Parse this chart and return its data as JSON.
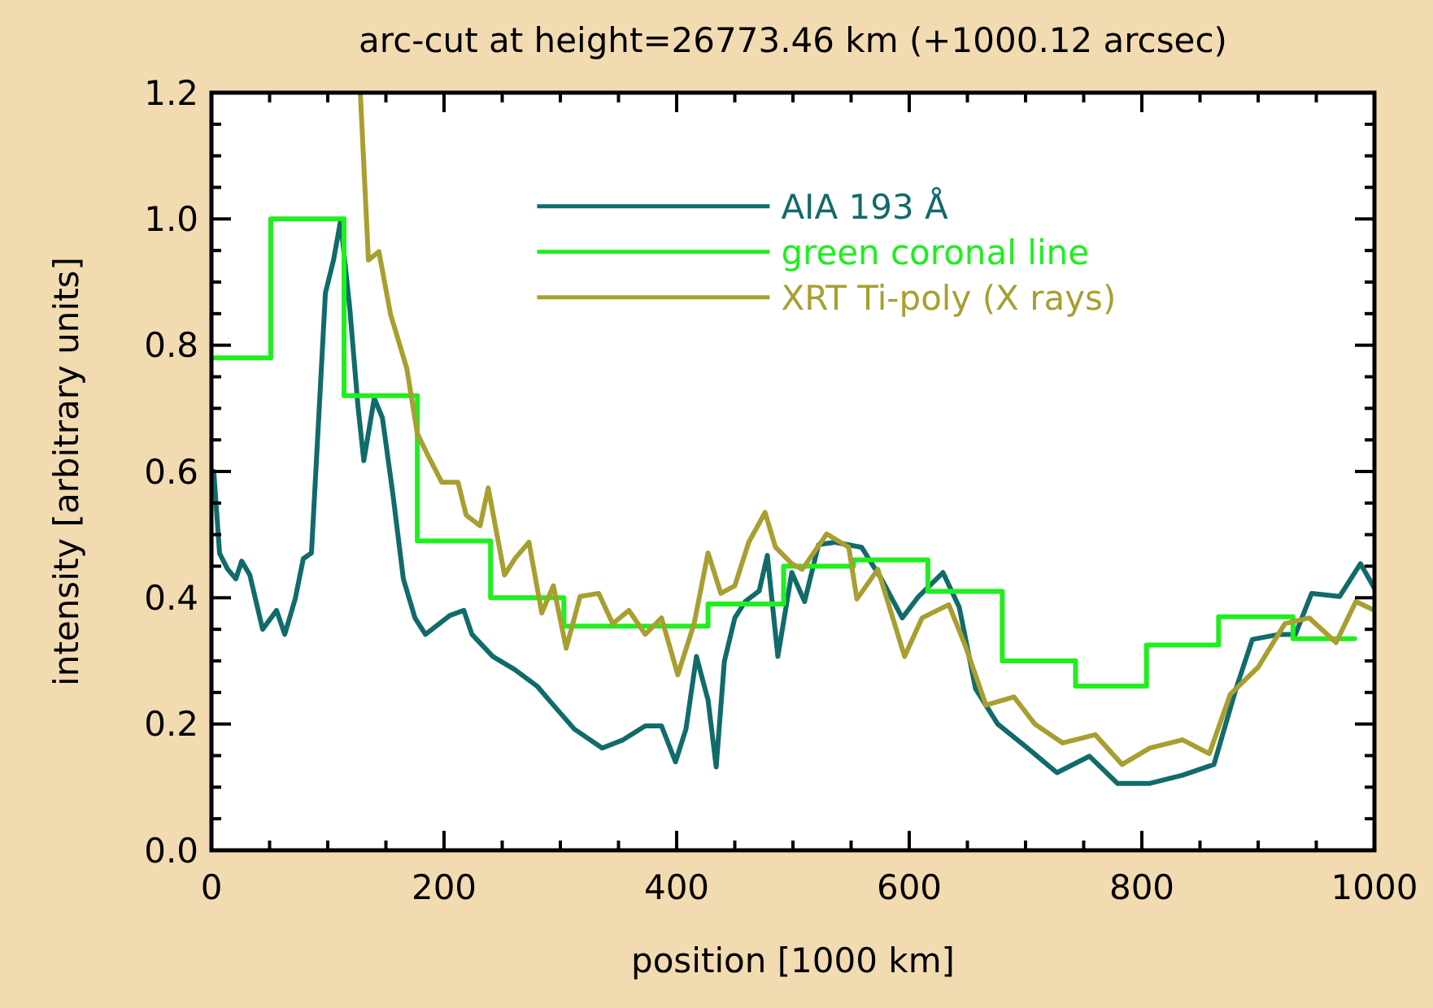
{
  "chart_data": {
    "type": "line",
    "title": "arc-cut at height=26773.46 km (+1000.12  arcsec)",
    "xlabel": "position [1000 km]",
    "ylabel": "intensity [arbitrary units]",
    "xlim": [
      0,
      1000
    ],
    "ylim": [
      0,
      1.2
    ],
    "xticks": [
      0,
      {
        "value": 50,
        "label": null
      },
      {
        "value": 100,
        "label": null
      },
      {
        "value": 150,
        "label": null
      },
      200,
      {
        "value": 250,
        "label": null
      },
      {
        "value": 300,
        "label": null
      },
      {
        "value": 350,
        "label": null
      },
      400,
      {
        "value": 450,
        "label": null
      },
      {
        "value": 500,
        "label": null
      },
      {
        "value": 550,
        "label": null
      },
      600,
      {
        "value": 650,
        "label": null
      },
      {
        "value": 700,
        "label": null
      },
      {
        "value": 750,
        "label": null
      },
      800,
      {
        "value": 850,
        "label": null
      },
      {
        "value": 900,
        "label": null
      },
      {
        "value": 950,
        "label": null
      },
      1000
    ],
    "yticks": [
      {
        "value": 0,
        "label": "0.0"
      },
      {
        "value": 0.05,
        "label": null
      },
      {
        "value": 0.1,
        "label": null
      },
      {
        "value": 0.15,
        "label": null
      },
      {
        "value": 0.2,
        "label": "0.2"
      },
      {
        "value": 0.25,
        "label": null
      },
      {
        "value": 0.3,
        "label": null
      },
      {
        "value": 0.35,
        "label": null
      },
      {
        "value": 0.4,
        "label": "0.4"
      },
      {
        "value": 0.45,
        "label": null
      },
      {
        "value": 0.5,
        "label": null
      },
      {
        "value": 0.55,
        "label": null
      },
      {
        "value": 0.6,
        "label": "0.6"
      },
      {
        "value": 0.65,
        "label": null
      },
      {
        "value": 0.7,
        "label": null
      },
      {
        "value": 0.75,
        "label": null
      },
      {
        "value": 0.8,
        "label": "0.8"
      },
      {
        "value": 0.85,
        "label": null
      },
      {
        "value": 0.9,
        "label": null
      },
      {
        "value": 0.95,
        "label": null
      },
      {
        "value": 1.0,
        "label": "1.0"
      },
      {
        "value": 1.05,
        "label": null
      },
      {
        "value": 1.1,
        "label": null
      },
      {
        "value": 1.15,
        "label": null
      },
      {
        "value": 1.2,
        "label": "1.2"
      }
    ],
    "legend": "top",
    "line_style": "solid",
    "series": [
      {
        "name": "AIA 193 Å",
        "color": "#116b6b",
        "x": [
          2,
          7,
          14,
          21,
          26,
          33,
          44,
          56,
          63,
          72,
          79,
          86,
          98,
          105,
          111,
          119,
          126,
          131,
          140,
          147,
          156,
          165,
          175,
          184,
          196,
          205,
          217,
          224,
          242,
          261,
          280,
          294,
          312,
          336,
          354,
          373,
          387,
          399,
          408,
          417,
          427,
          434,
          441,
          450,
          459,
          471,
          478,
          487,
          499,
          510,
          522,
          536,
          559,
          576,
          594,
          608,
          629,
          643,
          657,
          676,
          699,
          727,
          755,
          779,
          807,
          835,
          862,
          881,
          895,
          918,
          932,
          946,
          970,
          988,
          1000
        ],
        "values": [
          0.6,
          0.47,
          0.445,
          0.43,
          0.458,
          0.436,
          0.35,
          0.38,
          0.342,
          0.398,
          0.462,
          0.471,
          0.883,
          0.935,
          0.997,
          0.857,
          0.703,
          0.617,
          0.716,
          0.685,
          0.564,
          0.43,
          0.368,
          0.342,
          0.359,
          0.372,
          0.38,
          0.342,
          0.307,
          0.286,
          0.26,
          0.23,
          0.192,
          0.162,
          0.175,
          0.197,
          0.197,
          0.14,
          0.192,
          0.307,
          0.238,
          0.132,
          0.299,
          0.368,
          0.394,
          0.411,
          0.467,
          0.307,
          0.44,
          0.394,
          0.484,
          0.488,
          0.48,
          0.43,
          0.368,
          0.402,
          0.44,
          0.385,
          0.256,
          0.2,
          0.166,
          0.123,
          0.149,
          0.106,
          0.106,
          0.119,
          0.136,
          0.256,
          0.334,
          0.342,
          0.342,
          0.407,
          0.402,
          0.454,
          0.415
        ]
      },
      {
        "name": "green coronal line",
        "type": "step",
        "color": "#1fee1f",
        "x": [
          0,
          51,
          114,
          177,
          240,
          303,
          427,
          492,
          552,
          616,
          680,
          743,
          804,
          866,
          930,
          983
        ],
        "values": [
          0.78,
          1.0,
          0.72,
          0.49,
          0.4,
          0.355,
          0.39,
          0.45,
          0.46,
          0.41,
          0.3,
          0.26,
          0.325,
          0.37,
          0.335,
          0.335
        ]
      },
      {
        "name": "XRT Ti-poly (X rays)",
        "color": "#a89f30",
        "x": [
          128,
          135,
          144,
          154,
          168,
          177,
          186,
          198,
          212,
          219,
          231,
          238,
          252,
          261,
          273,
          284,
          294,
          305,
          317,
          333,
          345,
          359,
          373,
          387,
          401,
          415,
          427,
          438,
          450,
          462,
          476,
          485,
          499,
          508,
          529,
          548,
          555,
          573,
          596,
          611,
          634,
          648,
          666,
          690,
          708,
          732,
          760,
          783,
          807,
          835,
          858,
          876,
          900,
          923,
          944,
          967,
          984,
          1000
        ],
        "values": [
          1.2,
          0.935,
          0.948,
          0.849,
          0.763,
          0.66,
          0.626,
          0.583,
          0.583,
          0.531,
          0.514,
          0.574,
          0.436,
          0.462,
          0.488,
          0.376,
          0.419,
          0.32,
          0.402,
          0.407,
          0.359,
          0.38,
          0.342,
          0.368,
          0.278,
          0.359,
          0.471,
          0.407,
          0.419,
          0.488,
          0.535,
          0.48,
          0.454,
          0.445,
          0.501,
          0.48,
          0.398,
          0.445,
          0.307,
          0.368,
          0.389,
          0.325,
          0.23,
          0.243,
          0.2,
          0.17,
          0.183,
          0.136,
          0.162,
          0.175,
          0.153,
          0.247,
          0.29,
          0.359,
          0.368,
          0.329,
          0.394,
          0.38
        ]
      }
    ]
  }
}
